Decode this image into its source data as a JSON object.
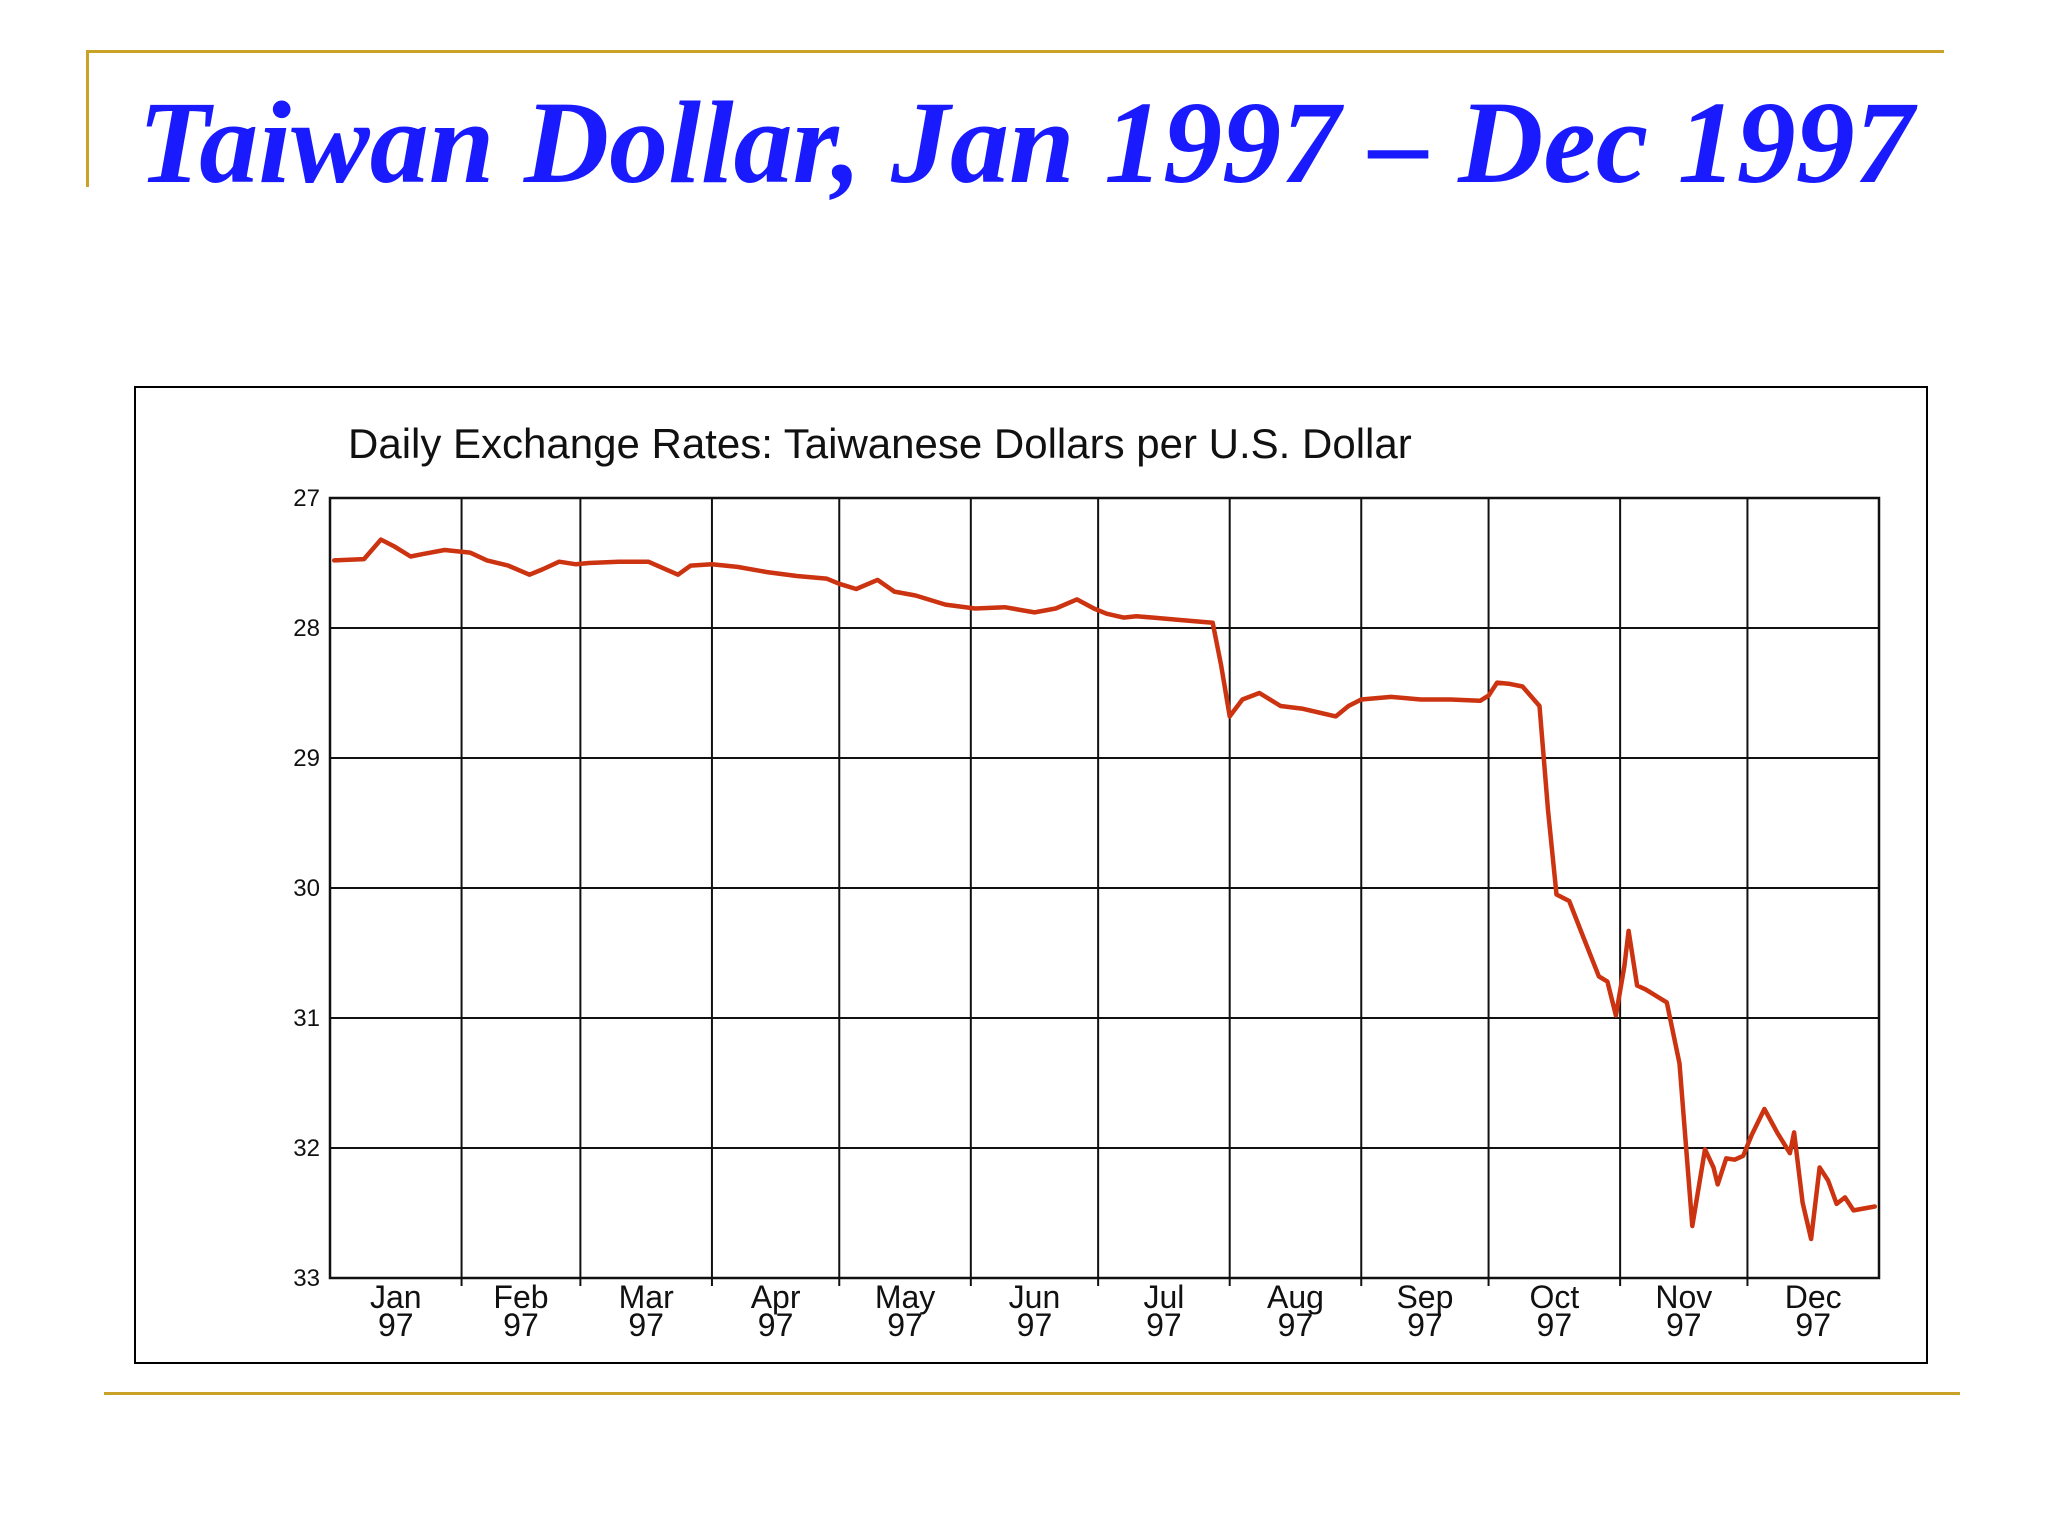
{
  "slide": {
    "title": "Taiwan Dollar, Jan 1997 – Dec 1997"
  },
  "chart_data": {
    "type": "line",
    "title": "Daily Exchange Rates: Taiwanese Dollars per U.S. Dollar",
    "xlabel": "",
    "ylabel": "",
    "ylim": [
      27,
      33
    ],
    "y_inverted": true,
    "y_ticks": [
      "27",
      "28",
      "29",
      "30",
      "31",
      "32",
      "33"
    ],
    "x_tick_labels": [
      {
        "month": "Jan",
        "year": "97"
      },
      {
        "month": "Feb",
        "year": "97"
      },
      {
        "month": "Mar",
        "year": "97"
      },
      {
        "month": "Apr",
        "year": "97"
      },
      {
        "month": "May",
        "year": "97"
      },
      {
        "month": "Jun",
        "year": "97"
      },
      {
        "month": "Jul",
        "year": "97"
      },
      {
        "month": "Aug",
        "year": "97"
      },
      {
        "month": "Sep",
        "year": "97"
      },
      {
        "month": "Oct",
        "year": "97"
      },
      {
        "month": "Nov",
        "year": "97"
      },
      {
        "month": "Dec",
        "year": "97"
      }
    ],
    "grid": true,
    "line_color": "#cc3311",
    "series": [
      {
        "x": [
          "1997-01-02",
          "1997-01-09",
          "1997-01-13",
          "1997-01-16",
          "1997-01-20",
          "1997-01-23",
          "1997-01-28",
          "1997-02-03",
          "1997-02-07",
          "1997-02-12",
          "1997-02-17",
          "1997-02-20",
          "1997-02-24",
          "1997-02-28",
          "1997-03-03",
          "1997-03-10",
          "1997-03-17",
          "1997-03-24",
          "1997-03-27",
          "1997-04-01",
          "1997-04-07",
          "1997-04-14",
          "1997-04-21",
          "1997-04-28",
          "1997-05-01",
          "1997-05-05",
          "1997-05-10",
          "1997-05-14",
          "1997-05-19",
          "1997-05-26",
          "1997-06-02",
          "1997-06-09",
          "1997-06-16",
          "1997-06-21",
          "1997-06-26",
          "1997-06-30",
          "1997-07-03",
          "1997-07-07",
          "1997-07-10",
          "1997-07-14",
          "1997-07-21",
          "1997-07-28",
          "1997-07-30",
          "1997-08-01",
          "1997-08-04",
          "1997-08-08",
          "1997-08-13",
          "1997-08-18",
          "1997-08-22",
          "1997-08-26",
          "1997-08-29",
          "1997-09-01",
          "1997-09-08",
          "1997-09-15",
          "1997-09-22",
          "1997-09-29",
          "1997-10-01",
          "1997-10-03",
          "1997-10-06",
          "1997-10-09",
          "1997-10-13",
          "1997-10-15",
          "1997-10-17",
          "1997-10-20",
          "1997-10-23",
          "1997-10-27",
          "1997-10-29",
          "1997-10-31",
          "1997-11-02",
          "1997-11-03",
          "1997-11-05",
          "1997-11-07",
          "1997-11-12",
          "1997-11-15",
          "1997-11-18",
          "1997-11-21",
          "1997-11-23",
          "1997-11-24",
          "1997-11-26",
          "1997-11-28",
          "1997-11-30",
          "1997-12-02",
          "1997-12-05",
          "1997-12-08",
          "1997-12-11",
          "1997-12-12",
          "1997-12-14",
          "1997-12-16",
          "1997-12-18",
          "1997-12-20",
          "1997-12-22",
          "1997-12-24",
          "1997-12-26",
          "1997-12-31"
        ],
        "values": [
          27.48,
          27.47,
          27.32,
          27.37,
          27.45,
          27.43,
          27.4,
          27.42,
          27.48,
          27.52,
          27.59,
          27.55,
          27.49,
          27.51,
          27.5,
          27.49,
          27.49,
          27.59,
          27.52,
          27.51,
          27.53,
          27.57,
          27.6,
          27.62,
          27.66,
          27.7,
          27.63,
          27.72,
          27.75,
          27.82,
          27.85,
          27.84,
          27.88,
          27.85,
          27.78,
          27.85,
          27.89,
          27.92,
          27.91,
          27.92,
          27.94,
          27.96,
          28.29,
          28.68,
          28.55,
          28.5,
          28.6,
          28.62,
          28.65,
          28.68,
          28.6,
          28.55,
          28.53,
          28.55,
          28.55,
          28.56,
          28.52,
          28.42,
          28.43,
          28.45,
          28.6,
          29.4,
          30.05,
          30.1,
          30.35,
          30.68,
          30.72,
          30.98,
          30.6,
          30.33,
          30.75,
          30.78,
          30.88,
          31.35,
          32.6,
          32.01,
          32.15,
          32.28,
          32.08,
          32.09,
          32.06,
          31.9,
          31.7,
          31.88,
          32.04,
          31.88,
          32.42,
          32.7,
          32.15,
          32.25,
          32.43,
          32.38,
          32.48,
          32.45
        ]
      }
    ]
  }
}
